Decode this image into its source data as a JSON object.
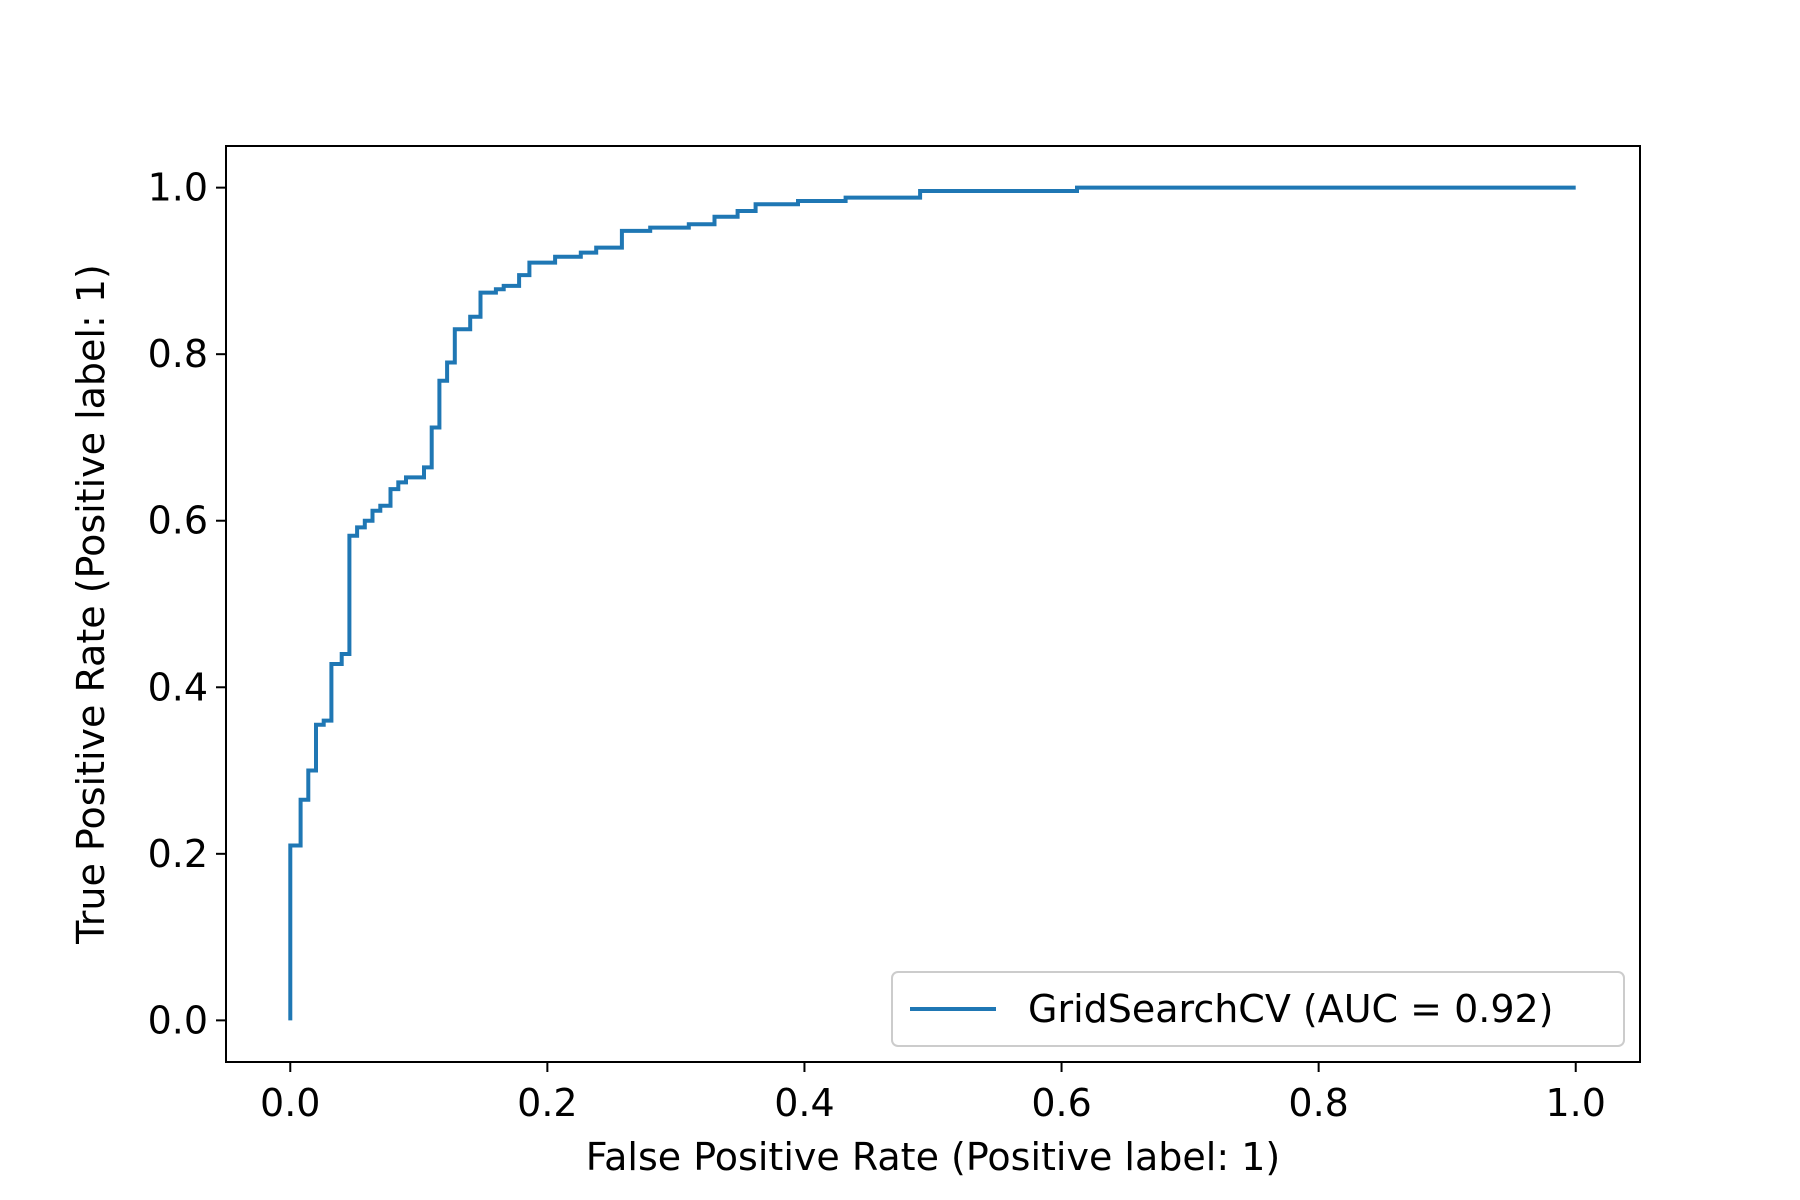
{
  "chart_data": {
    "type": "line",
    "xlabel": "False Positive Rate (Positive label: 1)",
    "ylabel": "True Positive Rate (Positive label: 1)",
    "xlim": [
      -0.05,
      1.05
    ],
    "ylim": [
      -0.05,
      1.05
    ],
    "xticks": [
      0.0,
      0.2,
      0.4,
      0.6,
      0.8,
      1.0
    ],
    "yticks": [
      0.0,
      0.2,
      0.4,
      0.6,
      0.8,
      1.0
    ],
    "xtick_labels": [
      "0.0",
      "0.2",
      "0.4",
      "0.6",
      "0.8",
      "1.0"
    ],
    "ytick_labels": [
      "0.0",
      "0.2",
      "0.4",
      "0.6",
      "0.8",
      "1.0"
    ],
    "grid": false,
    "legend": {
      "location": "lower-right",
      "entries": [
        "GridSearchCV (AUC = 0.92)"
      ]
    },
    "series": [
      {
        "name": "GridSearchCV (AUC = 0.92)",
        "color": "#1f77b4",
        "step": true,
        "points": [
          [
            0.0,
            0.0
          ],
          [
            0.0,
            0.21
          ],
          [
            0.008,
            0.21
          ],
          [
            0.008,
            0.265
          ],
          [
            0.014,
            0.265
          ],
          [
            0.014,
            0.3
          ],
          [
            0.02,
            0.3
          ],
          [
            0.02,
            0.355
          ],
          [
            0.026,
            0.355
          ],
          [
            0.026,
            0.36
          ],
          [
            0.032,
            0.36
          ],
          [
            0.032,
            0.428
          ],
          [
            0.04,
            0.428
          ],
          [
            0.04,
            0.44
          ],
          [
            0.046,
            0.44
          ],
          [
            0.046,
            0.582
          ],
          [
            0.052,
            0.582
          ],
          [
            0.052,
            0.592
          ],
          [
            0.058,
            0.592
          ],
          [
            0.058,
            0.6
          ],
          [
            0.064,
            0.6
          ],
          [
            0.064,
            0.612
          ],
          [
            0.07,
            0.612
          ],
          [
            0.07,
            0.618
          ],
          [
            0.078,
            0.618
          ],
          [
            0.078,
            0.638
          ],
          [
            0.084,
            0.638
          ],
          [
            0.084,
            0.646
          ],
          [
            0.09,
            0.646
          ],
          [
            0.09,
            0.652
          ],
          [
            0.104,
            0.652
          ],
          [
            0.104,
            0.664
          ],
          [
            0.11,
            0.664
          ],
          [
            0.11,
            0.712
          ],
          [
            0.116,
            0.712
          ],
          [
            0.116,
            0.768
          ],
          [
            0.122,
            0.768
          ],
          [
            0.122,
            0.79
          ],
          [
            0.128,
            0.79
          ],
          [
            0.128,
            0.83
          ],
          [
            0.14,
            0.83
          ],
          [
            0.14,
            0.845
          ],
          [
            0.148,
            0.845
          ],
          [
            0.148,
            0.874
          ],
          [
            0.16,
            0.874
          ],
          [
            0.16,
            0.878
          ],
          [
            0.166,
            0.878
          ],
          [
            0.166,
            0.882
          ],
          [
            0.178,
            0.882
          ],
          [
            0.178,
            0.895
          ],
          [
            0.186,
            0.895
          ],
          [
            0.186,
            0.91
          ],
          [
            0.206,
            0.91
          ],
          [
            0.206,
            0.917
          ],
          [
            0.226,
            0.917
          ],
          [
            0.226,
            0.922
          ],
          [
            0.238,
            0.922
          ],
          [
            0.238,
            0.928
          ],
          [
            0.258,
            0.928
          ],
          [
            0.258,
            0.948
          ],
          [
            0.28,
            0.948
          ],
          [
            0.28,
            0.952
          ],
          [
            0.31,
            0.952
          ],
          [
            0.31,
            0.956
          ],
          [
            0.33,
            0.956
          ],
          [
            0.33,
            0.965
          ],
          [
            0.348,
            0.965
          ],
          [
            0.348,
            0.972
          ],
          [
            0.362,
            0.972
          ],
          [
            0.362,
            0.98
          ],
          [
            0.395,
            0.98
          ],
          [
            0.395,
            0.984
          ],
          [
            0.432,
            0.984
          ],
          [
            0.432,
            0.988
          ],
          [
            0.49,
            0.988
          ],
          [
            0.49,
            0.996
          ],
          [
            0.612,
            0.996
          ],
          [
            0.612,
            1.0
          ],
          [
            1.0,
            1.0
          ]
        ]
      }
    ]
  }
}
